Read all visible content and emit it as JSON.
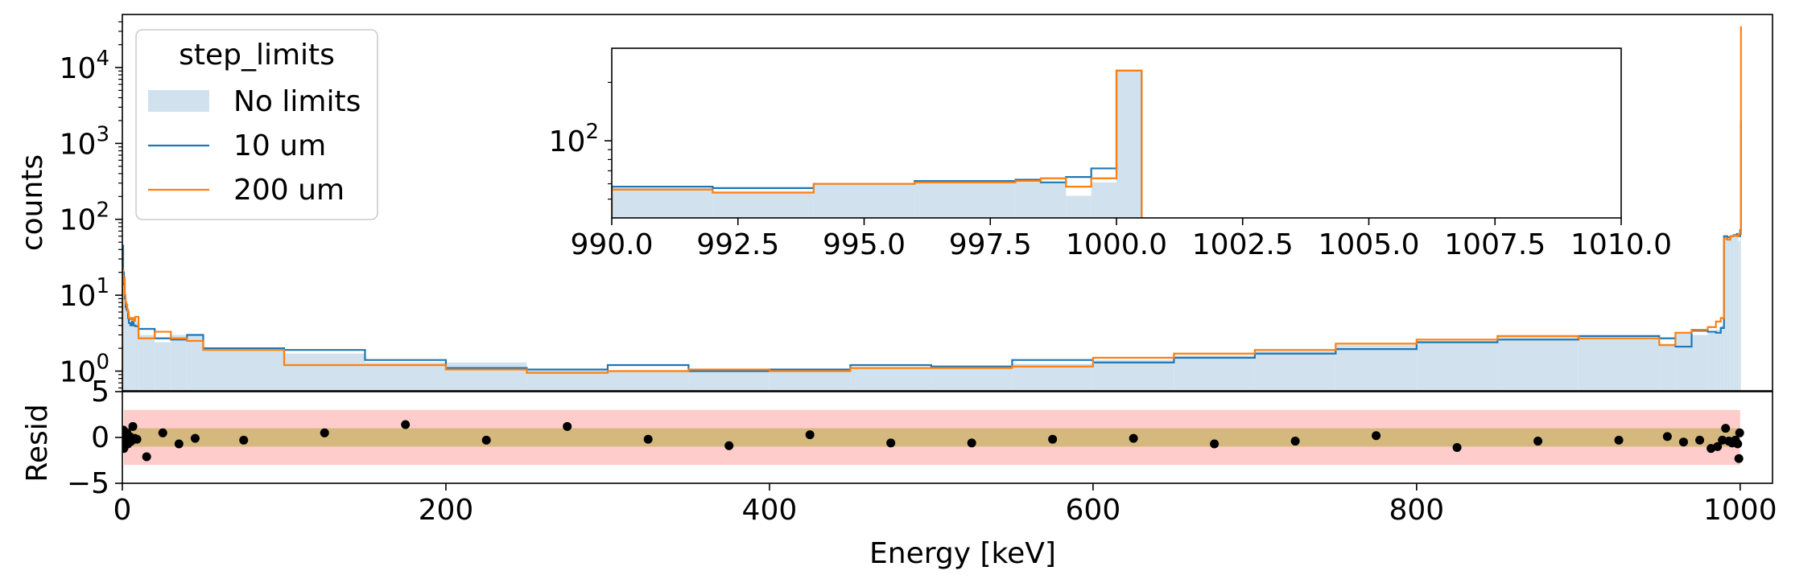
{
  "chart_data": [
    {
      "type": "step-histogram",
      "panel": "main",
      "ylabel": "counts",
      "yscale": "log",
      "xlim": [
        0,
        1020
      ],
      "ylim": [
        0.55,
        50000
      ],
      "yticks": [
        1,
        10,
        100,
        1000,
        10000
      ],
      "ytick_labels": [
        {
          "base": "10",
          "exp": "0"
        },
        {
          "base": "10",
          "exp": "1"
        },
        {
          "base": "10",
          "exp": "2"
        },
        {
          "base": "10",
          "exp": "3"
        },
        {
          "base": "10",
          "exp": "4"
        }
      ],
      "legend": {
        "title": "step_limits",
        "placement": "upper-left",
        "entries": [
          {
            "label": "No limits",
            "kind": "fill"
          },
          {
            "label": "10 um",
            "kind": "line"
          },
          {
            "label": "200 um",
            "kind": "line"
          }
        ]
      },
      "colors": {
        "fill": "#d1e2ee",
        "line10": "#1f77b4",
        "line200": "#ff7f0e"
      },
      "bin_edges": [
        0,
        0.5,
        1,
        1.5,
        2,
        2.5,
        3,
        3.5,
        4,
        5,
        6,
        7,
        8,
        10,
        20,
        30,
        40,
        50,
        100,
        150,
        200,
        250,
        300,
        350,
        400,
        450,
        500,
        550,
        600,
        650,
        700,
        750,
        800,
        850,
        900,
        950,
        960,
        970,
        980,
        985,
        988,
        990,
        992,
        994,
        996,
        998,
        999,
        1000,
        1000.5
      ],
      "series": [
        {
          "name": "No limits",
          "values": [
            28,
            18,
            13,
            10,
            8,
            7,
            6.5,
            6.3,
            5,
            4.5,
            4.6,
            4.3,
            4.5,
            3.0,
            2.4,
            3.0,
            3.0,
            1.9,
            1.7,
            1.3,
            1.3,
            1.05,
            1.0,
            1.05,
            1.05,
            1.1,
            1.15,
            1.25,
            1.4,
            1.6,
            1.85,
            2.2,
            2.5,
            2.9,
            2.8,
            2.3,
            3.3,
            3.0,
            3.2,
            3.5,
            4.0,
            58,
            55,
            60,
            62,
            60,
            52,
            68,
            2200
          ]
        },
        {
          "name": "10 um",
          "values": [
            45,
            20,
            14,
            9,
            7,
            6.5,
            6.3,
            5,
            4.3,
            4.0,
            4.5,
            4.0,
            3.9,
            3.6,
            2.7,
            2.6,
            3.0,
            2.0,
            1.9,
            1.4,
            1.1,
            1.05,
            1.2,
            1.0,
            1.05,
            1.2,
            1.15,
            1.4,
            1.3,
            1.5,
            1.7,
            1.95,
            2.4,
            2.6,
            2.9,
            2.7,
            2.1,
            3.4,
            3.3,
            3.2,
            3.7,
            60,
            58,
            60,
            62,
            64,
            60,
            72,
            2000
          ]
        },
        {
          "name": "200 um",
          "values": [
            22,
            15,
            17,
            10,
            8,
            7.5,
            6.5,
            6,
            5,
            4.8,
            5,
            4.6,
            5.2,
            2.7,
            3.3,
            2.7,
            2.5,
            1.9,
            1.2,
            1.2,
            1.05,
            0.95,
            1.0,
            1.05,
            1.0,
            1.1,
            1.1,
            1.15,
            1.5,
            1.7,
            1.9,
            2.3,
            2.6,
            2.9,
            2.7,
            2.2,
            3.2,
            3.5,
            3.8,
            4.5,
            5.0,
            56,
            54,
            60,
            61,
            60,
            64,
            64,
            35000
          ]
        }
      ]
    },
    {
      "type": "step-histogram",
      "panel": "inset",
      "yscale": "log",
      "xlim": [
        990,
        1010
      ],
      "ylim": [
        40,
        300
      ],
      "yticks": [
        100
      ],
      "ytick_labels": [
        {
          "base": "10",
          "exp": "2"
        }
      ],
      "xticks": [
        990.0,
        992.5,
        995.0,
        997.5,
        1000.0,
        1002.5,
        1005.0,
        1007.5,
        1010.0
      ],
      "xtick_labels": [
        "990.0",
        "992.5",
        "995.0",
        "997.5",
        "1000.0",
        "1002.5",
        "1005.0",
        "1007.5",
        "1010.0"
      ],
      "bin_edges": [
        990,
        992,
        994,
        996,
        998,
        998.5,
        999,
        999.5,
        1000,
        1000.5
      ],
      "series": [
        {
          "name": "No limits",
          "values": [
            57,
            55,
            60,
            61,
            61,
            61,
            52,
            61,
            230
          ]
        },
        {
          "name": "10 um",
          "values": [
            58,
            57,
            60,
            62,
            63,
            61,
            65,
            72,
            230
          ]
        },
        {
          "name": "200 um",
          "values": [
            56,
            54,
            60,
            61,
            62,
            64,
            58,
            64,
            230
          ]
        }
      ]
    },
    {
      "type": "scatter",
      "panel": "residual",
      "ylabel": "Resid",
      "xlabel": "Energy [keV]",
      "xlim": [
        0,
        1020
      ],
      "ylim": [
        -5,
        5
      ],
      "yticks": [
        -5,
        0,
        5
      ],
      "ytick_labels": [
        "−5",
        "0",
        "5"
      ],
      "xticks": [
        0,
        200,
        400,
        600,
        800,
        1000
      ],
      "xtick_labels": [
        "0",
        "200",
        "400",
        "600",
        "800",
        "1000"
      ],
      "bands": [
        {
          "from": -3,
          "to": 3,
          "color": "#ffcccc"
        },
        {
          "from": -1,
          "to": 1,
          "color": "#d4b87e"
        }
      ],
      "x": [
        0.3,
        0.6,
        0.9,
        1.2,
        1.6,
        2.2,
        2.8,
        3.5,
        4.5,
        5.5,
        6.5,
        7.5,
        9,
        15,
        25,
        35,
        45,
        75,
        125,
        175,
        225,
        275,
        325,
        375,
        425,
        475,
        525,
        575,
        625,
        675,
        725,
        775,
        825,
        875,
        925,
        955,
        965,
        975,
        982,
        986,
        989,
        991,
        993,
        995,
        997,
        998.5,
        999.2,
        999.7
      ],
      "y": [
        -0.5,
        0.8,
        -1.2,
        0.3,
        -0.9,
        -0.2,
        0.5,
        -0.7,
        0.1,
        -0.4,
        1.2,
        -0.1,
        -0.2,
        -2.1,
        0.5,
        -0.7,
        -0.1,
        -0.3,
        0.5,
        1.4,
        -0.3,
        1.2,
        -0.2,
        -0.9,
        0.3,
        -0.6,
        -0.6,
        -0.2,
        -0.1,
        -0.7,
        -0.4,
        0.2,
        -1.1,
        -0.4,
        -0.3,
        0.1,
        -0.5,
        -0.3,
        -1.2,
        -1.0,
        -0.3,
        1.0,
        -0.4,
        -0.6,
        -0.3,
        -0.7,
        -2.3,
        0.5
      ]
    }
  ]
}
